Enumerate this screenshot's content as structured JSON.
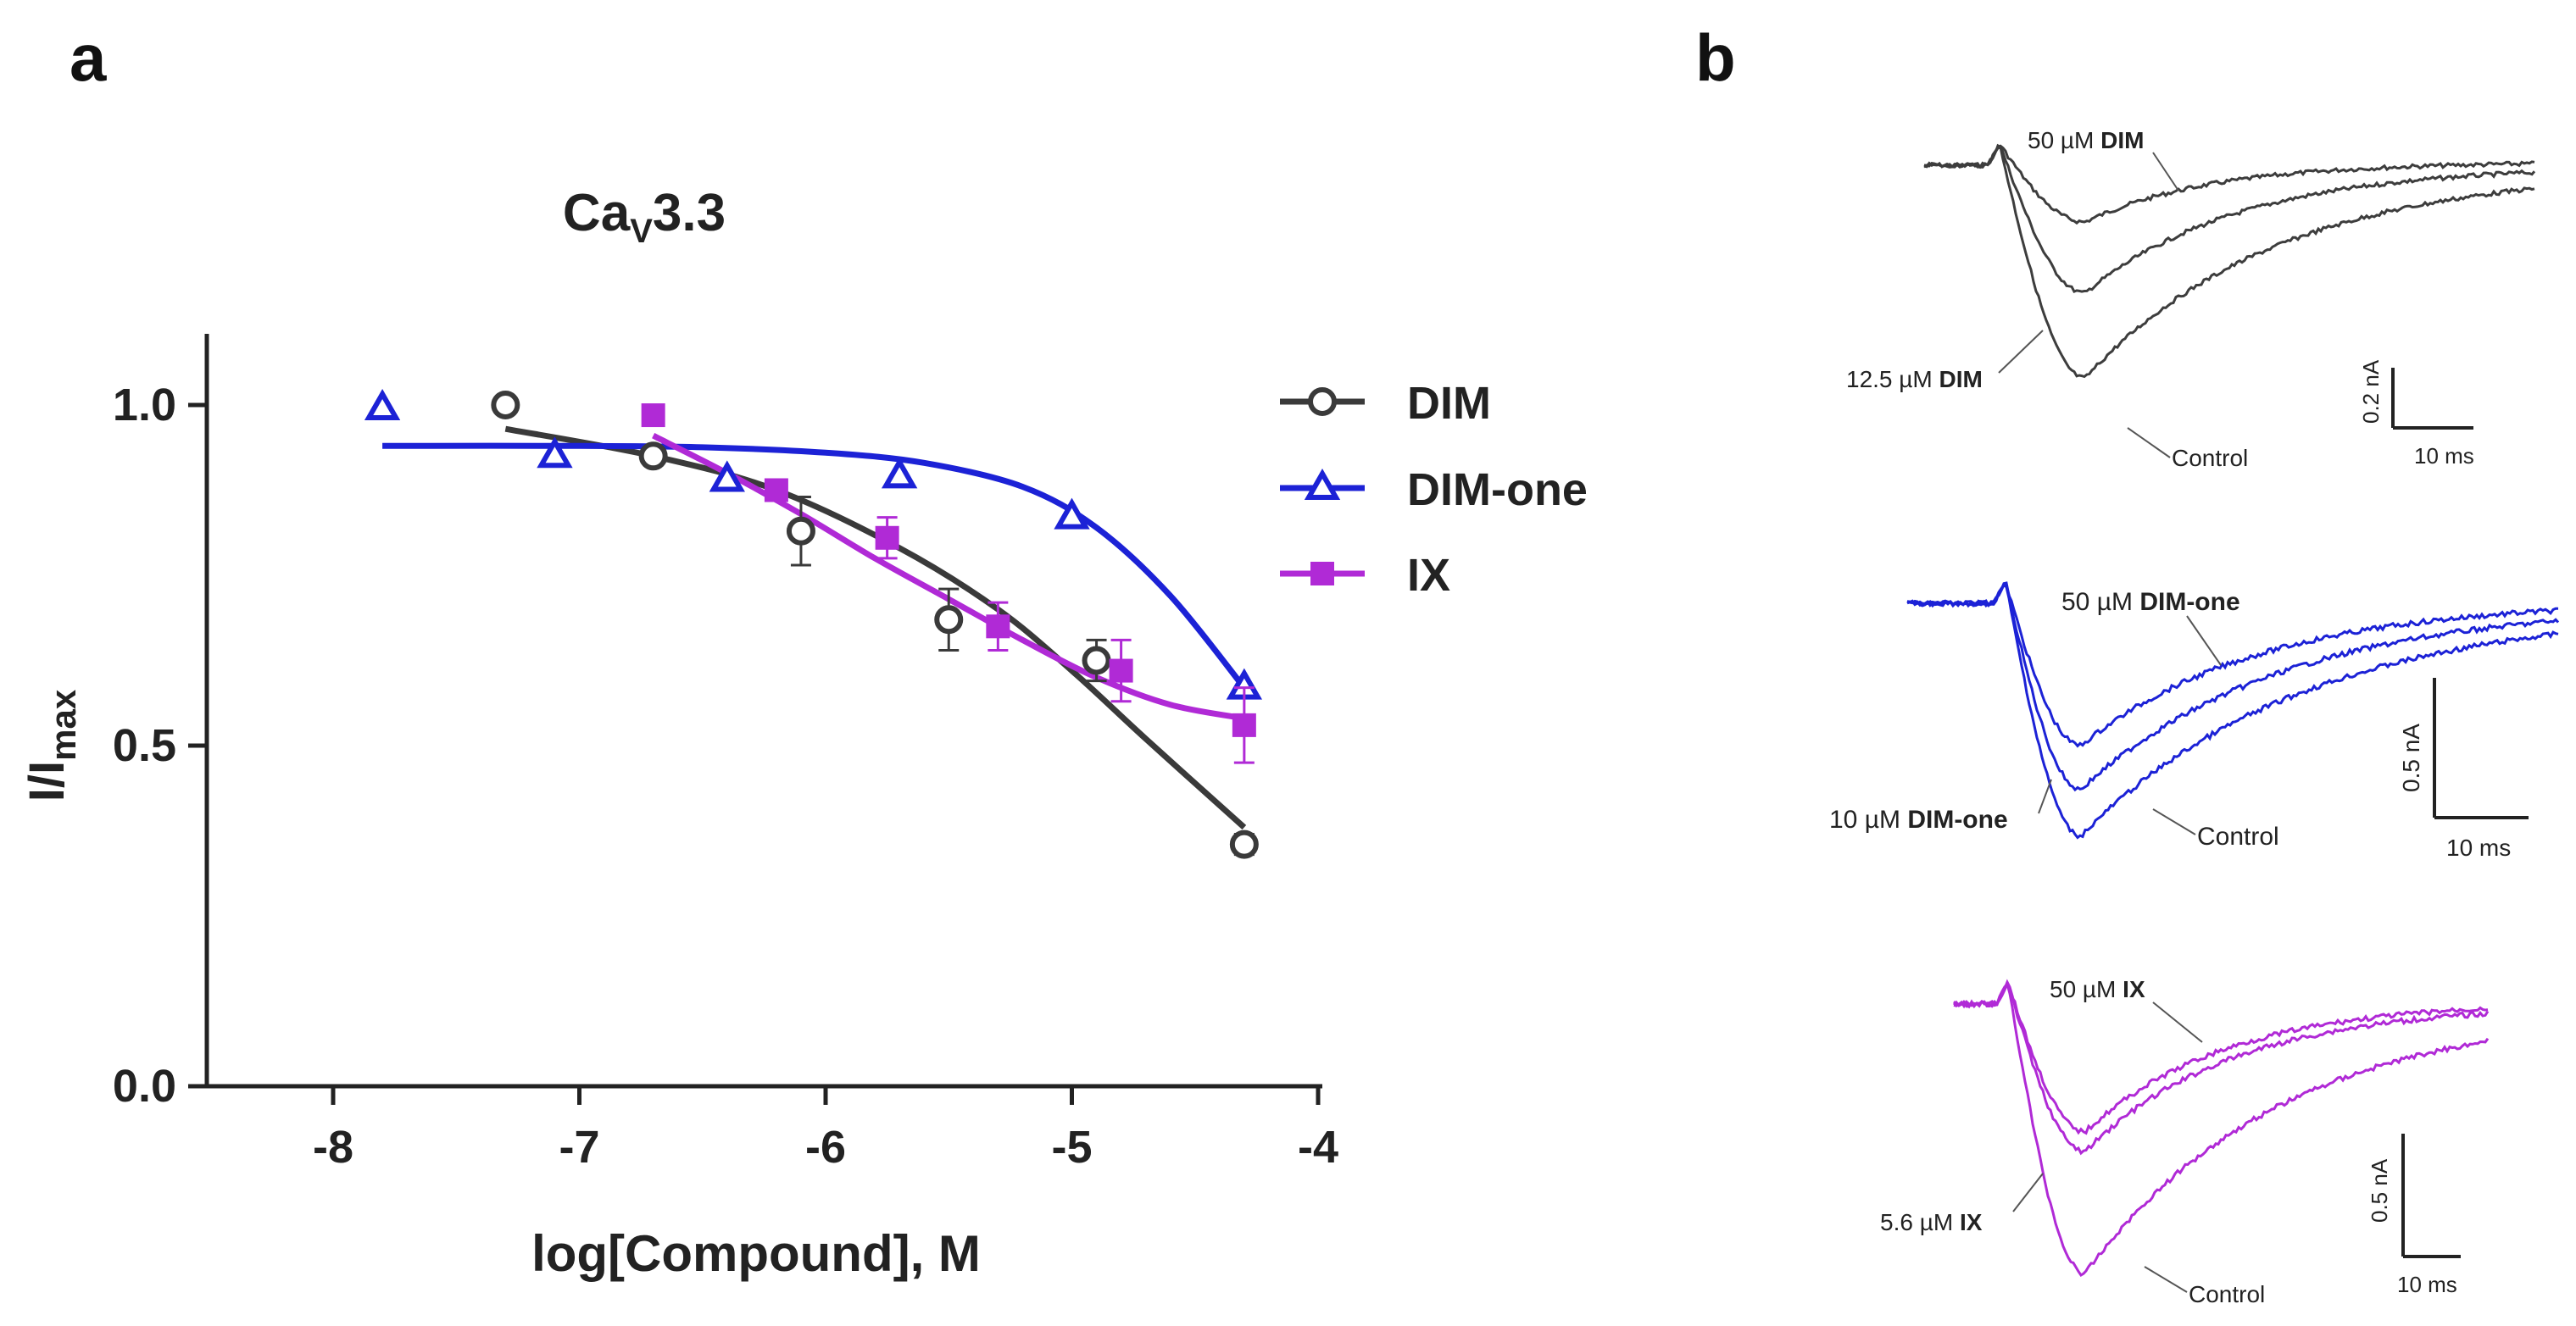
{
  "panel_labels": {
    "a": "a",
    "b": "b"
  },
  "chart_data": [
    {
      "type": "scatter",
      "title_main": "Ca",
      "title_sub": "V",
      "title_rest": "3.3",
      "xlabel": "log[Compound], M",
      "ylabel_main": "I/I",
      "ylabel_sub": "max",
      "xlim": [
        -8.5,
        -4
      ],
      "ylim": [
        0,
        1.1
      ],
      "x_ticks": [
        -8,
        -7,
        -6,
        -5,
        -4
      ],
      "x_tick_labels": [
        "-8",
        "-7",
        "-6",
        "-5",
        "-4"
      ],
      "y_ticks": [
        0.0,
        0.5,
        1.0
      ],
      "y_tick_labels": [
        "0.0",
        "0.5",
        "1.0"
      ],
      "legend_position": "top-right",
      "series": [
        {
          "name": "DIM",
          "color": "#3a3a3a",
          "marker": "open-circle",
          "points": [
            {
              "x": -7.3,
              "y": 1.0,
              "err": 0.0
            },
            {
              "x": -6.7,
              "y": 0.925,
              "err": 0.01
            },
            {
              "x": -6.1,
              "y": 0.815,
              "err": 0.05
            },
            {
              "x": -5.5,
              "y": 0.685,
              "err": 0.045
            },
            {
              "x": -4.9,
              "y": 0.625,
              "err": 0.03
            },
            {
              "x": -4.3,
              "y": 0.355,
              "err": 0.015
            }
          ],
          "fit": [
            [
              -7.3,
              0.965
            ],
            [
              -6.7,
              0.925
            ],
            [
              -6.2,
              0.875
            ],
            [
              -5.7,
              0.79
            ],
            [
              -5.3,
              0.7
            ],
            [
              -5.0,
              0.61
            ],
            [
              -4.7,
              0.51
            ],
            [
              -4.3,
              0.38
            ]
          ]
        },
        {
          "name": "DIM-one",
          "color": "#1c22d6",
          "marker": "open-triangle",
          "points": [
            {
              "x": -7.8,
              "y": 0.995,
              "err": 0.0
            },
            {
              "x": -7.1,
              "y": 0.925,
              "err": 0.0
            },
            {
              "x": -6.4,
              "y": 0.89,
              "err": 0.0
            },
            {
              "x": -5.7,
              "y": 0.895,
              "err": 0.0
            },
            {
              "x": -5.0,
              "y": 0.835,
              "err": 0.0
            },
            {
              "x": -4.3,
              "y": 0.585,
              "err": 0.0
            }
          ],
          "fit": [
            [
              -7.8,
              0.94
            ],
            [
              -7.0,
              0.94
            ],
            [
              -6.5,
              0.938
            ],
            [
              -6.0,
              0.93
            ],
            [
              -5.6,
              0.915
            ],
            [
              -5.2,
              0.88
            ],
            [
              -4.9,
              0.82
            ],
            [
              -4.6,
              0.72
            ],
            [
              -4.3,
              0.585
            ]
          ]
        },
        {
          "name": "IX",
          "color": "#b02ad6",
          "marker": "filled-square",
          "points": [
            {
              "x": -6.7,
              "y": 0.985,
              "err": 0.0
            },
            {
              "x": -6.2,
              "y": 0.875,
              "err": 0.0
            },
            {
              "x": -5.75,
              "y": 0.805,
              "err": 0.03
            },
            {
              "x": -5.3,
              "y": 0.675,
              "err": 0.035
            },
            {
              "x": -4.8,
              "y": 0.61,
              "err": 0.045
            },
            {
              "x": -4.3,
              "y": 0.53,
              "err": 0.055
            }
          ],
          "fit": [
            [
              -6.7,
              0.955
            ],
            [
              -6.4,
              0.9
            ],
            [
              -6.1,
              0.84
            ],
            [
              -5.8,
              0.775
            ],
            [
              -5.5,
              0.715
            ],
            [
              -5.2,
              0.655
            ],
            [
              -4.9,
              0.6
            ],
            [
              -4.6,
              0.56
            ],
            [
              -4.3,
              0.54
            ]
          ]
        }
      ]
    },
    {
      "type": "line",
      "panel": "b",
      "traces": [
        {
          "name": "DIM traces",
          "color": "#3d3d3d",
          "labels": [
            {
              "prefix": "50 µM ",
              "bold": "DIM"
            },
            {
              "prefix": "12.5 µM ",
              "bold": "DIM"
            },
            {
              "prefix": "",
              "bold": "",
              "plain": "Control"
            }
          ],
          "scalebar": {
            "amplitude": "0.2 nA",
            "time": "10 ms"
          },
          "peak_fractions": [
            0.2,
            0.45,
            0.75
          ]
        },
        {
          "name": "DIM-one traces",
          "color": "#1c22d6",
          "labels": [
            {
              "prefix": "50 µM ",
              "bold": "DIM-one"
            },
            {
              "prefix": "10 µM ",
              "bold": "DIM-one"
            },
            {
              "prefix": "",
              "bold": "",
              "plain": "Control"
            }
          ],
          "scalebar": {
            "amplitude": "0.5 nA",
            "time": "10 ms"
          },
          "peak_fractions": [
            0.55,
            0.72,
            0.9
          ]
        },
        {
          "name": "IX traces",
          "color": "#b02ad6",
          "labels": [
            {
              "prefix": "50 µM ",
              "bold": "IX"
            },
            {
              "prefix": "5.6 µM ",
              "bold": "IX"
            },
            {
              "prefix": "",
              "bold": "",
              "plain": "Control"
            }
          ],
          "scalebar": {
            "amplitude": "0.5 nA",
            "time": "10 ms"
          },
          "peak_fractions": [
            0.45,
            0.52,
            0.95
          ]
        }
      ]
    }
  ]
}
